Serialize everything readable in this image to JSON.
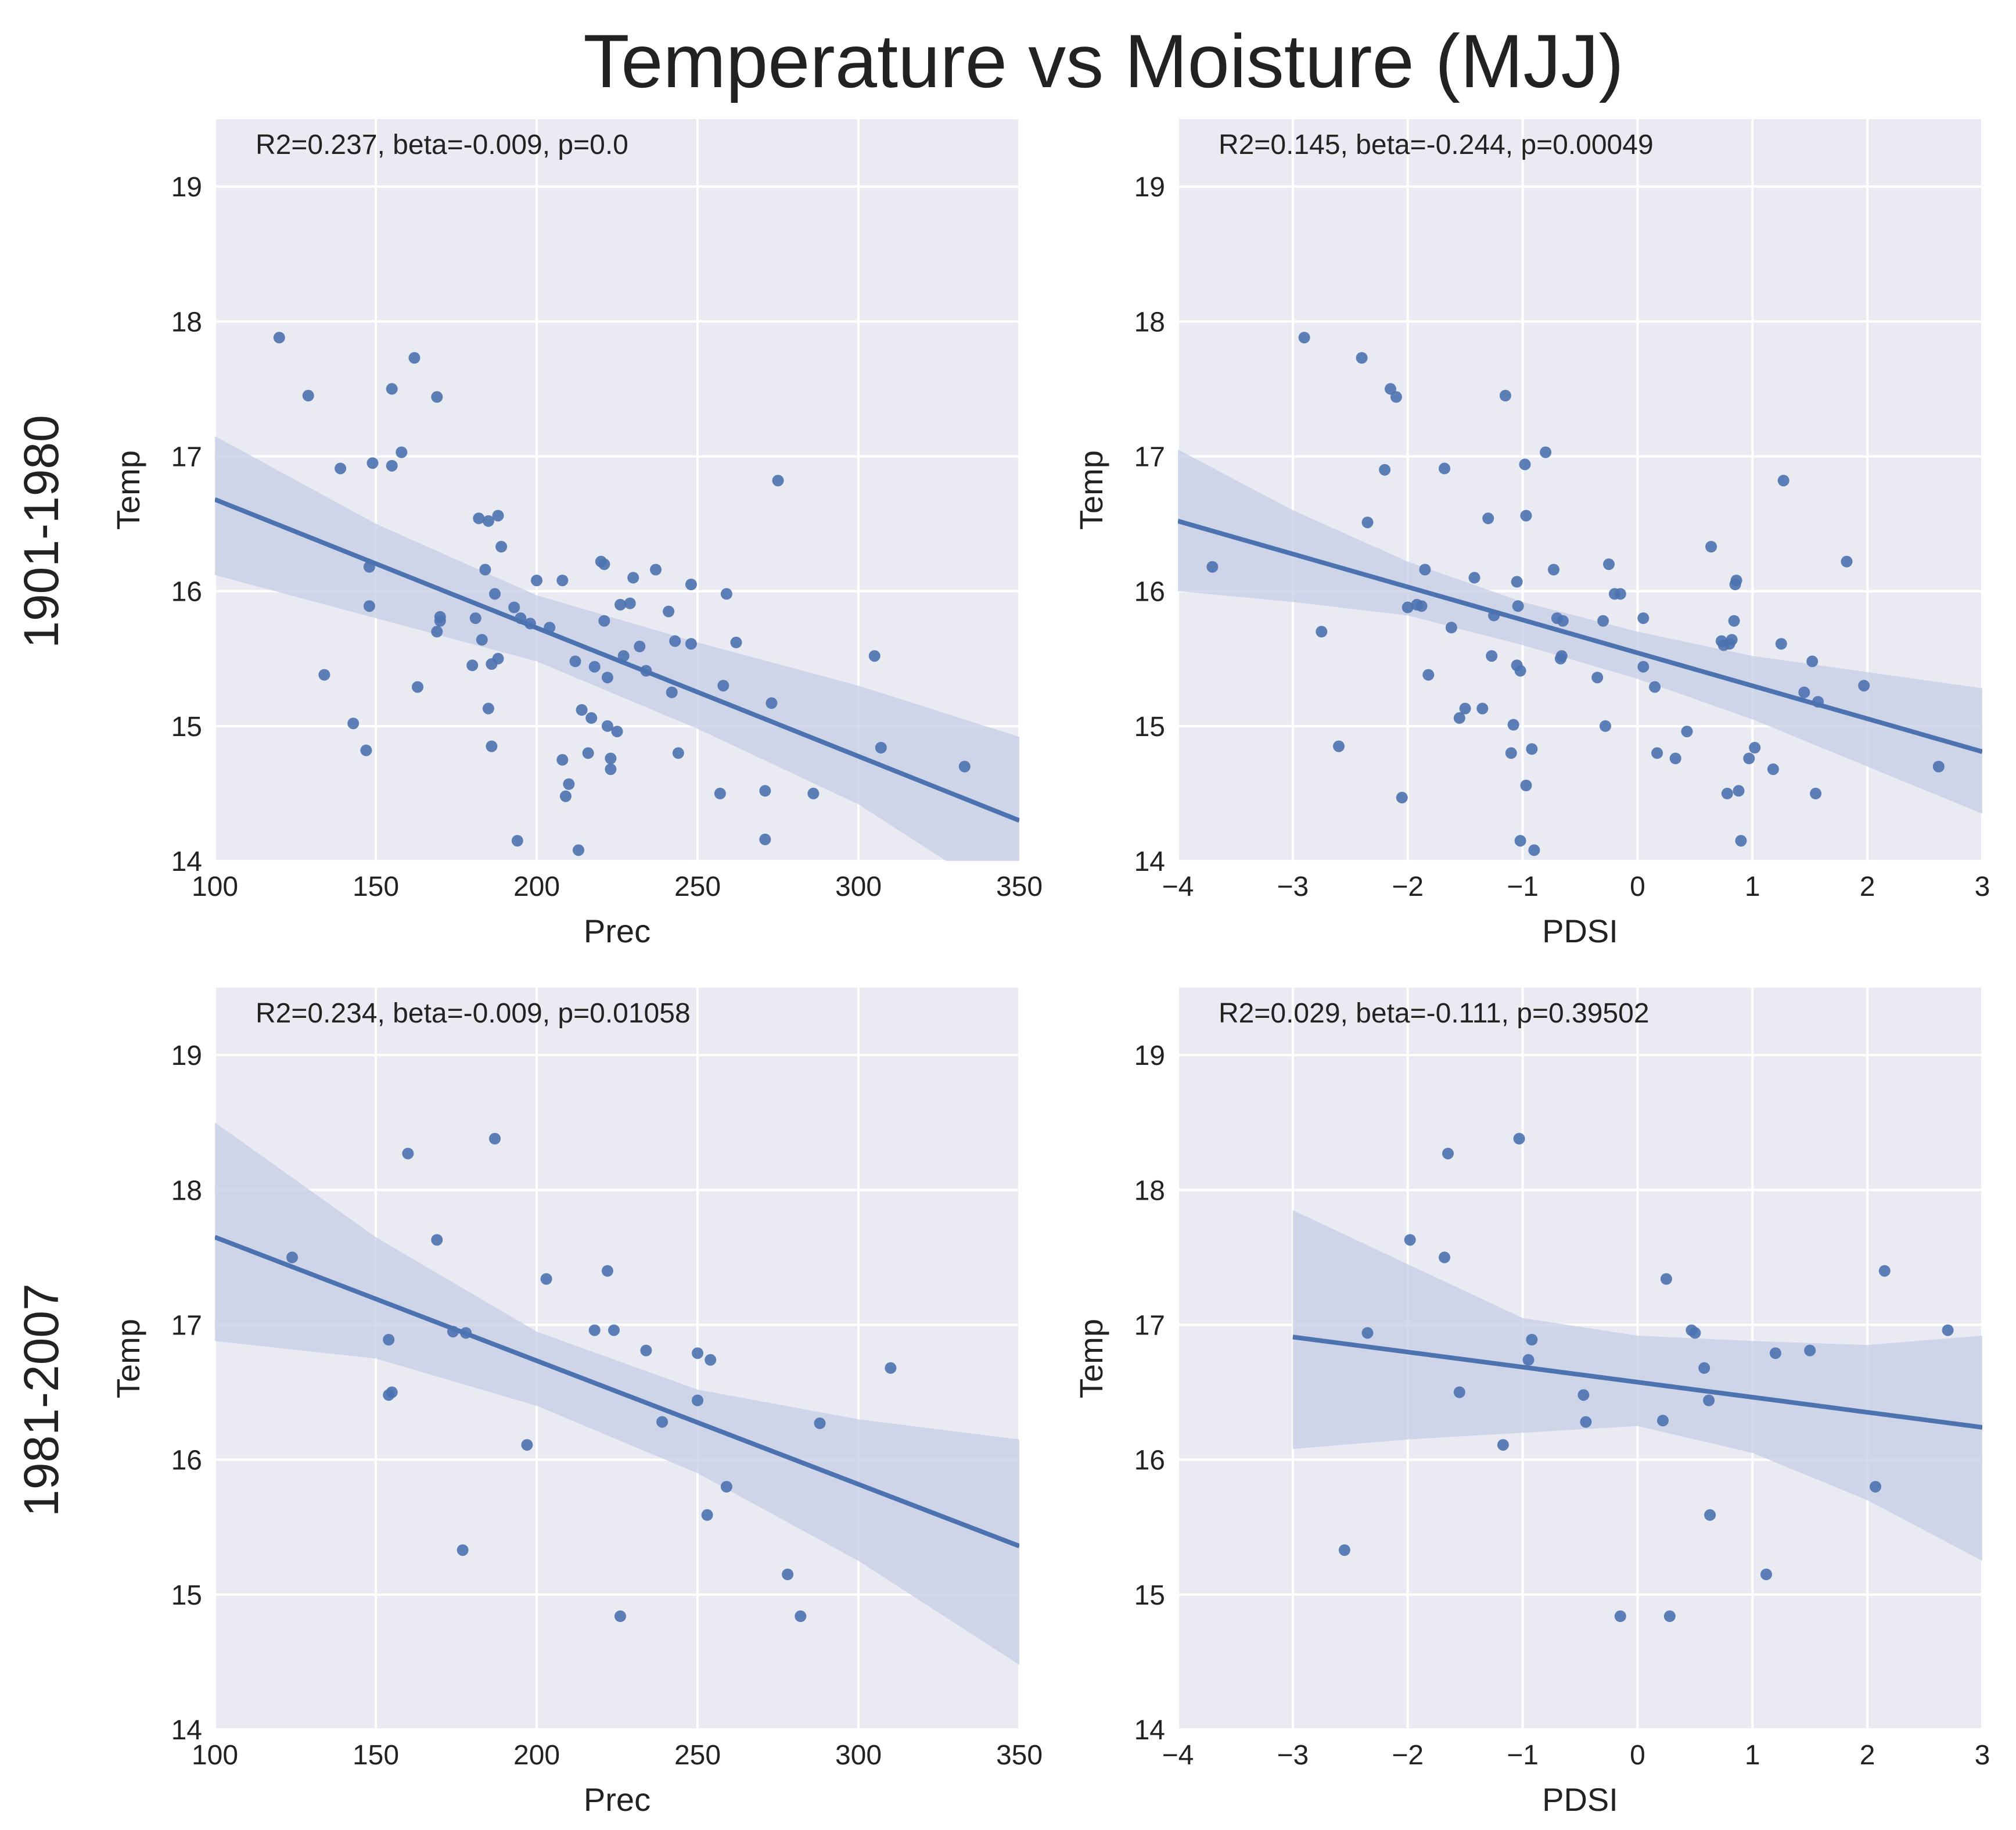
{
  "figure": {
    "title": "Temperature vs Moisture (MJJ)",
    "row_labels": [
      "1901-1980",
      "1981-2007"
    ],
    "colors": {
      "background": "#EAEAF2",
      "grid": "#FFFFFF",
      "points": "#4C72B0",
      "line": "#4C72B0",
      "band": "#C6CEE6"
    }
  },
  "chart_data": [
    {
      "type": "scatter",
      "annotation": "R2=0.237, beta=-0.009, p=0.0",
      "xlabel": "Prec",
      "ylabel": "Temp",
      "xlim": [
        100,
        350
      ],
      "ylim": [
        14,
        19.5
      ],
      "xticks": [
        100,
        150,
        200,
        250,
        300,
        350
      ],
      "yticks": [
        14,
        15,
        16,
        17,
        18,
        19
      ],
      "grid": true,
      "fit": {
        "x": [
          100,
          350
        ],
        "y": [
          16.68,
          14.3
        ]
      },
      "band": {
        "x": [
          100,
          150,
          200,
          250,
          300,
          350
        ],
        "upper": [
          17.15,
          16.5,
          15.97,
          15.62,
          15.3,
          14.92
        ],
        "lower": [
          16.12,
          15.8,
          15.48,
          14.98,
          14.42,
          13.65
        ]
      },
      "points": [
        [
          120,
          17.88
        ],
        [
          129,
          17.45
        ],
        [
          134,
          15.38
        ],
        [
          139,
          16.91
        ],
        [
          143,
          15.02
        ],
        [
          147,
          14.82
        ],
        [
          148,
          15.89
        ],
        [
          148,
          16.18
        ],
        [
          149,
          16.95
        ],
        [
          155,
          16.93
        ],
        [
          155,
          17.5
        ],
        [
          158,
          17.03
        ],
        [
          162,
          17.73
        ],
        [
          163,
          15.29
        ],
        [
          169,
          17.44
        ],
        [
          169,
          15.7
        ],
        [
          170,
          15.81
        ],
        [
          170,
          15.78
        ],
        [
          180,
          15.45
        ],
        [
          181,
          15.8
        ],
        [
          182,
          16.54
        ],
        [
          183,
          15.64
        ],
        [
          184,
          16.16
        ],
        [
          185,
          16.52
        ],
        [
          185,
          15.13
        ],
        [
          186,
          14.85
        ],
        [
          186,
          15.46
        ],
        [
          187,
          15.98
        ],
        [
          188,
          15.5
        ],
        [
          188,
          16.56
        ],
        [
          189,
          16.33
        ],
        [
          193,
          15.88
        ],
        [
          194,
          14.15
        ],
        [
          195,
          15.8
        ],
        [
          198,
          15.76
        ],
        [
          200,
          16.08
        ],
        [
          204,
          15.73
        ],
        [
          208,
          16.08
        ],
        [
          208,
          14.75
        ],
        [
          209,
          14.48
        ],
        [
          210,
          14.57
        ],
        [
          212,
          15.48
        ],
        [
          213,
          14.08
        ],
        [
          214,
          15.12
        ],
        [
          216,
          14.8
        ],
        [
          217,
          15.06
        ],
        [
          218,
          15.44
        ],
        [
          220,
          16.22
        ],
        [
          221,
          16.2
        ],
        [
          221,
          15.78
        ],
        [
          222,
          15.0
        ],
        [
          222,
          15.36
        ],
        [
          223,
          14.68
        ],
        [
          223,
          14.76
        ],
        [
          225,
          14.96
        ],
        [
          226,
          15.9
        ],
        [
          227,
          15.52
        ],
        [
          229,
          15.91
        ],
        [
          230,
          16.1
        ],
        [
          232,
          15.59
        ],
        [
          234,
          15.41
        ],
        [
          237,
          16.16
        ],
        [
          241,
          15.85
        ],
        [
          242,
          15.25
        ],
        [
          243,
          15.63
        ],
        [
          244,
          14.8
        ],
        [
          248,
          16.05
        ],
        [
          248,
          15.61
        ],
        [
          257,
          14.5
        ],
        [
          258,
          15.3
        ],
        [
          259,
          15.98
        ],
        [
          262,
          15.62
        ],
        [
          271,
          14.16
        ],
        [
          271,
          14.52
        ],
        [
          273,
          15.17
        ],
        [
          275,
          16.82
        ],
        [
          286,
          14.5
        ],
        [
          305,
          15.52
        ],
        [
          307,
          14.84
        ],
        [
          333,
          14.7
        ]
      ]
    },
    {
      "type": "scatter",
      "annotation": "R2=0.145, beta=-0.244, p=0.00049",
      "xlabel": "PDSI",
      "ylabel": "Temp",
      "xlim": [
        -4,
        3
      ],
      "ylim": [
        14,
        19.5
      ],
      "xticks": [
        -4,
        -3,
        -2,
        -1,
        0,
        1,
        2,
        3
      ],
      "yticks": [
        14,
        15,
        16,
        17,
        18,
        19
      ],
      "grid": true,
      "fit": {
        "x": [
          -4,
          3
        ],
        "y": [
          16.52,
          14.81
        ]
      },
      "band": {
        "x": [
          -4,
          -3,
          -2,
          -1,
          0,
          1,
          2,
          3
        ],
        "upper": [
          17.05,
          16.6,
          16.22,
          15.92,
          15.7,
          15.52,
          15.4,
          15.28
        ],
        "lower": [
          16.0,
          15.92,
          15.82,
          15.6,
          15.35,
          15.05,
          14.7,
          14.35
        ]
      },
      "points": [
        [
          -3.7,
          16.18
        ],
        [
          -2.9,
          17.88
        ],
        [
          -2.75,
          15.7
        ],
        [
          -2.6,
          14.85
        ],
        [
          -2.4,
          17.73
        ],
        [
          -2.35,
          16.51
        ],
        [
          -2.2,
          16.9
        ],
        [
          -2.15,
          17.5
        ],
        [
          -2.1,
          17.44
        ],
        [
          -2.05,
          14.47
        ],
        [
          -2.0,
          15.88
        ],
        [
          -1.92,
          15.9
        ],
        [
          -1.88,
          15.89
        ],
        [
          -1.85,
          16.16
        ],
        [
          -1.82,
          15.38
        ],
        [
          -1.68,
          16.91
        ],
        [
          -1.62,
          15.73
        ],
        [
          -1.55,
          15.06
        ],
        [
          -1.5,
          15.13
        ],
        [
          -1.42,
          16.1
        ],
        [
          -1.35,
          15.13
        ],
        [
          -1.3,
          16.54
        ],
        [
          -1.27,
          15.52
        ],
        [
          -1.25,
          15.82
        ],
        [
          -1.15,
          17.45
        ],
        [
          -1.1,
          14.8
        ],
        [
          -1.08,
          15.01
        ],
        [
          -1.05,
          16.07
        ],
        [
          -1.05,
          15.45
        ],
        [
          -1.04,
          15.89
        ],
        [
          -1.02,
          15.41
        ],
        [
          -1.02,
          14.15
        ],
        [
          -0.98,
          16.94
        ],
        [
          -0.97,
          16.56
        ],
        [
          -0.97,
          14.56
        ],
        [
          -0.92,
          14.83
        ],
        [
          -0.9,
          14.08
        ],
        [
          -0.8,
          17.03
        ],
        [
          -0.73,
          16.16
        ],
        [
          -0.7,
          15.8
        ],
        [
          -0.67,
          15.5
        ],
        [
          -0.66,
          15.52
        ],
        [
          -0.65,
          15.78
        ],
        [
          -0.35,
          15.36
        ],
        [
          -0.3,
          15.78
        ],
        [
          -0.28,
          15.0
        ],
        [
          -0.25,
          16.2
        ],
        [
          -0.2,
          15.98
        ],
        [
          -0.15,
          15.98
        ],
        [
          0.05,
          15.8
        ],
        [
          0.05,
          15.44
        ],
        [
          0.15,
          15.29
        ],
        [
          0.17,
          14.8
        ],
        [
          0.33,
          14.76
        ],
        [
          0.43,
          14.96
        ],
        [
          0.64,
          16.33
        ],
        [
          0.73,
          15.63
        ],
        [
          0.75,
          15.6
        ],
        [
          0.78,
          14.5
        ],
        [
          0.8,
          15.61
        ],
        [
          0.82,
          15.64
        ],
        [
          0.84,
          15.78
        ],
        [
          0.85,
          16.05
        ],
        [
          0.86,
          16.08
        ],
        [
          0.88,
          14.52
        ],
        [
          0.9,
          14.15
        ],
        [
          0.97,
          14.76
        ],
        [
          1.02,
          14.84
        ],
        [
          1.18,
          14.68
        ],
        [
          1.25,
          15.61
        ],
        [
          1.27,
          16.82
        ],
        [
          1.45,
          15.25
        ],
        [
          1.52,
          15.48
        ],
        [
          1.55,
          14.5
        ],
        [
          1.57,
          15.18
        ],
        [
          1.82,
          16.22
        ],
        [
          1.97,
          15.3
        ],
        [
          2.62,
          14.7
        ]
      ]
    },
    {
      "type": "scatter",
      "annotation": "R2=0.234, beta=-0.009, p=0.01058",
      "xlabel": "Prec",
      "ylabel": "Temp",
      "xlim": [
        100,
        350
      ],
      "ylim": [
        14,
        19.5
      ],
      "xticks": [
        100,
        150,
        200,
        250,
        300,
        350
      ],
      "yticks": [
        14,
        15,
        16,
        17,
        18,
        19
      ],
      "grid": true,
      "fit": {
        "x": [
          100,
          350
        ],
        "y": [
          17.65,
          15.36
        ]
      },
      "band": {
        "x": [
          100,
          150,
          200,
          250,
          300,
          350
        ],
        "upper": [
          18.5,
          17.65,
          16.95,
          16.52,
          16.3,
          16.15
        ],
        "lower": [
          16.88,
          16.75,
          16.4,
          15.9,
          15.25,
          14.48
        ]
      },
      "points": [
        [
          124,
          17.5
        ],
        [
          154,
          16.89
        ],
        [
          154,
          16.48
        ],
        [
          155,
          16.5
        ],
        [
          160,
          18.27
        ],
        [
          169,
          17.63
        ],
        [
          174,
          16.95
        ],
        [
          177,
          15.33
        ],
        [
          178,
          16.94
        ],
        [
          187,
          18.38
        ],
        [
          197,
          16.11
        ],
        [
          203,
          17.34
        ],
        [
          218,
          16.96
        ],
        [
          222,
          17.4
        ],
        [
          224,
          16.96
        ],
        [
          226,
          14.84
        ],
        [
          234,
          16.81
        ],
        [
          239,
          16.28
        ],
        [
          250,
          16.79
        ],
        [
          250,
          16.44
        ],
        [
          253,
          15.59
        ],
        [
          254,
          16.74
        ],
        [
          259,
          15.8
        ],
        [
          278,
          15.15
        ],
        [
          282,
          14.84
        ],
        [
          288,
          16.27
        ],
        [
          310,
          16.68
        ]
      ]
    },
    {
      "type": "scatter",
      "annotation": "R2=0.029, beta=-0.111, p=0.39502",
      "xlabel": "PDSI",
      "ylabel": "Temp",
      "xlim": [
        -4,
        3
      ],
      "ylim": [
        14,
        19.5
      ],
      "xticks": [
        -4,
        -3,
        -2,
        -1,
        0,
        1,
        2,
        3
      ],
      "yticks": [
        14,
        15,
        16,
        17,
        18,
        19
      ],
      "grid": true,
      "fit": {
        "x": [
          -3,
          3
        ],
        "y": [
          16.91,
          16.24
        ]
      },
      "band": {
        "x": [
          -3,
          -2,
          -1,
          0,
          1,
          2,
          3
        ],
        "upper": [
          17.85,
          17.45,
          17.05,
          16.92,
          16.88,
          16.85,
          16.92
        ],
        "lower": [
          16.08,
          16.15,
          16.2,
          16.25,
          16.05,
          15.7,
          15.25
        ]
      },
      "points": [
        [
          -2.55,
          15.33
        ],
        [
          -2.35,
          16.94
        ],
        [
          -1.98,
          17.63
        ],
        [
          -1.68,
          17.5
        ],
        [
          -1.65,
          18.27
        ],
        [
          -1.55,
          16.5
        ],
        [
          -1.17,
          16.11
        ],
        [
          -1.03,
          18.38
        ],
        [
          -0.95,
          16.74
        ],
        [
          -0.92,
          16.89
        ],
        [
          -0.47,
          16.48
        ],
        [
          -0.45,
          16.28
        ],
        [
          -0.15,
          14.84
        ],
        [
          0.22,
          16.29
        ],
        [
          0.25,
          17.34
        ],
        [
          0.28,
          14.84
        ],
        [
          0.47,
          16.96
        ],
        [
          0.5,
          16.94
        ],
        [
          0.58,
          16.68
        ],
        [
          0.62,
          16.44
        ],
        [
          0.63,
          15.59
        ],
        [
          1.12,
          15.15
        ],
        [
          1.2,
          16.79
        ],
        [
          1.5,
          16.81
        ],
        [
          2.07,
          15.8
        ],
        [
          2.15,
          17.4
        ],
        [
          2.7,
          16.96
        ]
      ]
    }
  ]
}
